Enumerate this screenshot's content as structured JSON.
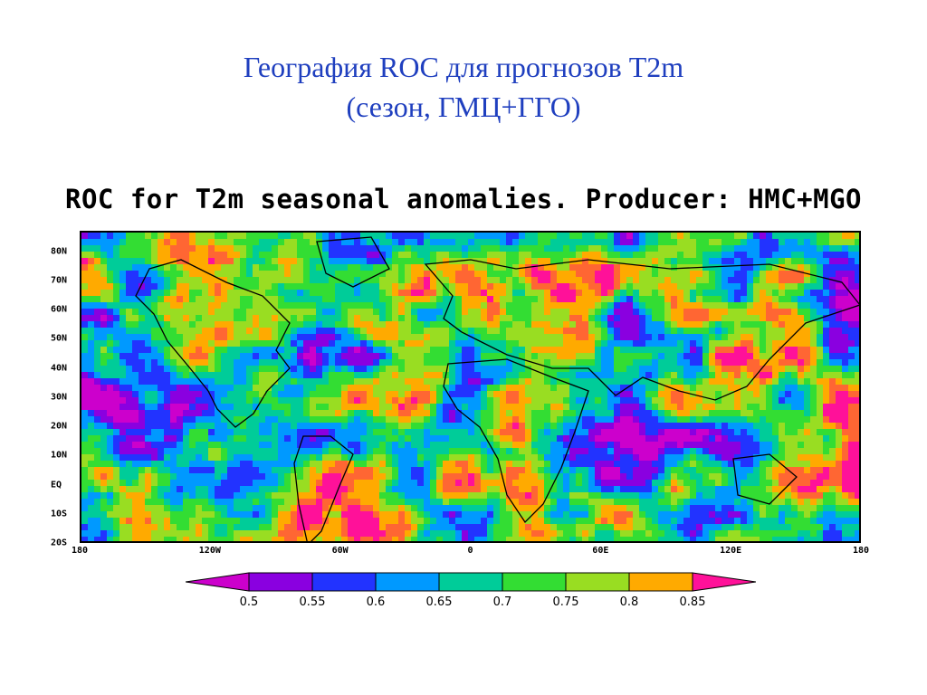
{
  "slide": {
    "title_line1": "География ROC для прогнозов T2m",
    "title_line2": "(сезон, ГМЦ+ГГО)"
  },
  "figure": {
    "title": "ROC for T2m seasonal anomalies. Producer: HMC+MGO"
  },
  "chart_data": {
    "type": "heatmap",
    "title": "ROC for T2m seasonal anomalies. Producer: HMC+MGO",
    "xlabel": "",
    "ylabel": "",
    "xlim": [
      -180,
      180
    ],
    "ylim": [
      -20,
      87
    ],
    "lat_ticks": [
      "80N",
      "70N",
      "60N",
      "50N",
      "40N",
      "30N",
      "20N",
      "10N",
      "EQ",
      "10S",
      "20S"
    ],
    "lat_values": [
      80,
      70,
      60,
      50,
      40,
      30,
      20,
      10,
      0,
      -10,
      -20
    ],
    "lon_ticks": [
      "180",
      "120W",
      "60W",
      "0",
      "60E",
      "120E",
      "180"
    ],
    "lon_values": [
      -180,
      -120,
      -60,
      0,
      60,
      120,
      180
    ],
    "colorbar": {
      "levels": [
        0.5,
        0.55,
        0.6,
        0.65,
        0.7,
        0.75,
        0.8,
        0.85
      ],
      "labels": [
        "0.5",
        "0.55",
        "0.6",
        "0.65",
        "0.7",
        "0.75",
        "0.8",
        "0.85"
      ],
      "colors": [
        "#cc00cc",
        "#8a00e0",
        "#2233ff",
        "#0099ff",
        "#00cc99",
        "#33dd33",
        "#99dd22",
        "#ffaa00",
        "#ff6633",
        "#ff1199"
      ],
      "extend": "both"
    },
    "grid": false,
    "legend_placement": "bottom"
  }
}
